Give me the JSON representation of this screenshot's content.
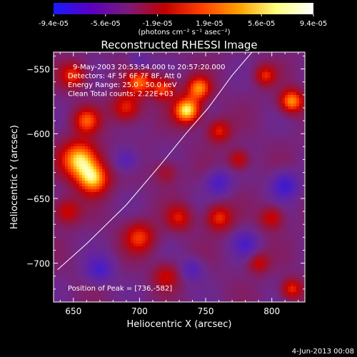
{
  "colorbar": {
    "tick_labels": [
      "-9.4e-05",
      "-5.6e-05",
      "-1.9e-05",
      "1.9e-05",
      "5.6e-05",
      "9.4e-05"
    ],
    "units": "(photons cm⁻² s⁻¹ asec⁻²)",
    "colors": [
      "#1a1aff",
      "#5a00c0",
      "#7a1a7a",
      "#c00000",
      "#ff4000",
      "#ffa000",
      "#ffff80",
      "#ffffff"
    ]
  },
  "chart_data": {
    "type": "heatmap",
    "title": "Reconstructed RHESSI Image",
    "xlabel": "Heliocentric X (arcsec)",
    "ylabel": "Heliocentric Y (arcsec)",
    "xlim": [
      635,
      825
    ],
    "ylim": [
      -730,
      -537
    ],
    "xticks": [
      650,
      700,
      750,
      800
    ],
    "yticks": [
      -550,
      -600,
      -650,
      -700
    ],
    "xtick_labels": [
      "650",
      "700",
      "750",
      "800"
    ],
    "ytick_labels": [
      "−550",
      "−600",
      "−650",
      "−700"
    ],
    "info_lines": [
      "9-May-2003 20:53:54.000 to 20:57:20.000",
      "Detectors: 4F 5F 6F 7F 8F, Att 0",
      "Energy Range: 25.0 - 50.0 keV",
      "Clean    Total counts: 2.22E+03"
    ],
    "peak_label": "Position of Peak = [736,-582]",
    "peak": [
      736,
      -582
    ],
    "limb_curve": [
      [
        638,
        -705
      ],
      [
        660,
        -685
      ],
      [
        690,
        -655
      ],
      [
        715,
        -625
      ],
      [
        735,
        -600
      ],
      [
        752,
        -580
      ],
      [
        770,
        -555
      ],
      [
        785,
        -537
      ]
    ],
    "blobs": [
      {
        "x": 655,
        "y": -620,
        "v": 0.95,
        "r": 14
      },
      {
        "x": 665,
        "y": -635,
        "v": 0.85,
        "r": 12
      },
      {
        "x": 660,
        "y": -590,
        "v": 0.6,
        "r": 10
      },
      {
        "x": 690,
        "y": -580,
        "v": 0.55,
        "r": 11
      },
      {
        "x": 700,
        "y": -560,
        "v": 0.65,
        "r": 10
      },
      {
        "x": 718,
        "y": -565,
        "v": 0.6,
        "r": 9
      },
      {
        "x": 736,
        "y": -582,
        "v": 1.0,
        "r": 10
      },
      {
        "x": 745,
        "y": -565,
        "v": 0.75,
        "r": 9
      },
      {
        "x": 760,
        "y": -598,
        "v": 0.5,
        "r": 9
      },
      {
        "x": 650,
        "y": -555,
        "v": 0.55,
        "r": 10
      },
      {
        "x": 700,
        "y": -680,
        "v": 0.55,
        "r": 12
      },
      {
        "x": 730,
        "y": -665,
        "v": 0.45,
        "r": 10
      },
      {
        "x": 760,
        "y": -665,
        "v": 0.55,
        "r": 10
      },
      {
        "x": 800,
        "y": -665,
        "v": 0.45,
        "r": 9
      },
      {
        "x": 815,
        "y": -575,
        "v": 0.8,
        "r": 9
      },
      {
        "x": 795,
        "y": -555,
        "v": 0.5,
        "r": 8
      },
      {
        "x": 775,
        "y": -620,
        "v": 0.45,
        "r": 8
      },
      {
        "x": 720,
        "y": -710,
        "v": 0.4,
        "r": 10
      },
      {
        "x": 815,
        "y": -720,
        "v": 0.55,
        "r": 8
      },
      {
        "x": 790,
        "y": -700,
        "v": 0.4,
        "r": 8
      },
      {
        "x": 645,
        "y": -660,
        "v": 0.45,
        "r": 10
      },
      {
        "x": 720,
        "y": -630,
        "v": 0.3,
        "r": 9
      },
      {
        "x": 810,
        "y": -640,
        "v": -0.6,
        "r": 10
      },
      {
        "x": 690,
        "y": -620,
        "v": -0.4,
        "r": 9
      },
      {
        "x": 760,
        "y": -638,
        "v": -0.5,
        "r": 9
      },
      {
        "x": 670,
        "y": -705,
        "v": -0.5,
        "r": 10
      },
      {
        "x": 780,
        "y": -685,
        "v": -0.45,
        "r": 9
      },
      {
        "x": 740,
        "y": -705,
        "v": -0.4,
        "r": 8
      },
      {
        "x": 700,
        "y": -545,
        "v": -0.3,
        "r": 8
      }
    ]
  },
  "footer": {
    "date": "4-Jun-2013 00:08"
  }
}
